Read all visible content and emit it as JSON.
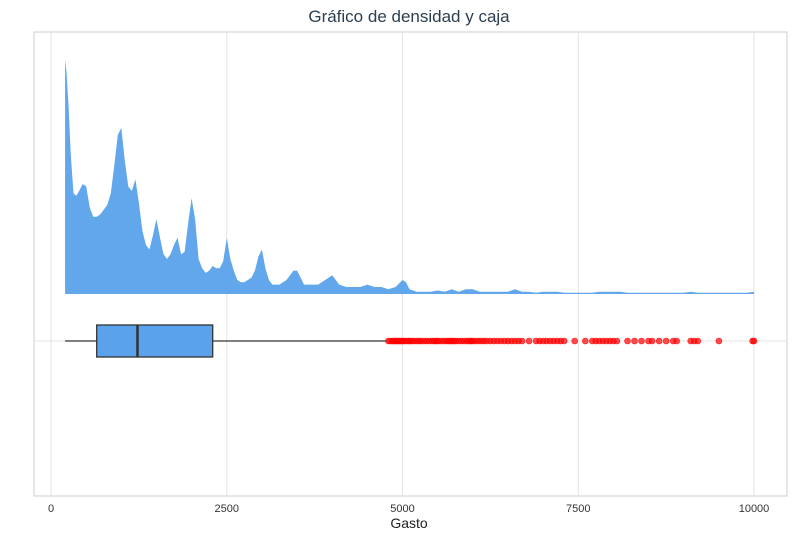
{
  "chart_data": {
    "type": "density+boxplot",
    "title": "Gráfico de densidad y caja",
    "xlabel": "Gasto",
    "ylabel": "",
    "xlim": [
      -250,
      10300
    ],
    "x_ticks": [
      0,
      2500,
      5000,
      7500,
      10000
    ],
    "x_tick_labels": [
      "0",
      "2500",
      "5000",
      "7500",
      "10000"
    ],
    "grid": true,
    "colors": {
      "fill": "#5aa2eb",
      "outlier": "#ff0000",
      "box_edge": "#333333",
      "grid": "#e3e3e3"
    },
    "density": {
      "x": [
        200,
        220,
        250,
        280,
        320,
        360,
        400,
        450,
        500,
        550,
        600,
        650,
        700,
        750,
        800,
        850,
        900,
        950,
        1000,
        1050,
        1100,
        1150,
        1200,
        1250,
        1300,
        1350,
        1400,
        1450,
        1500,
        1550,
        1600,
        1650,
        1700,
        1750,
        1800,
        1850,
        1900,
        1950,
        2000,
        2050,
        2100,
        2150,
        2200,
        2250,
        2300,
        2350,
        2400,
        2450,
        2500,
        2550,
        2600,
        2650,
        2700,
        2750,
        2800,
        2850,
        2900,
        2950,
        3000,
        3050,
        3100,
        3150,
        3200,
        3250,
        3300,
        3350,
        3400,
        3450,
        3500,
        3550,
        3600,
        3700,
        3800,
        3900,
        4000,
        4100,
        4200,
        4300,
        4400,
        4500,
        4600,
        4700,
        4800,
        4900,
        5000,
        5050,
        5100,
        5200,
        5300,
        5400,
        5500,
        5600,
        5700,
        5800,
        5900,
        6000,
        6100,
        6200,
        6300,
        6400,
        6500,
        6600,
        6700,
        6800,
        6900,
        7000,
        7100,
        7200,
        7300,
        7400,
        7500,
        7600,
        7700,
        7800,
        7900,
        8000,
        8100,
        8200,
        8300,
        8400,
        8500,
        8600,
        8700,
        8800,
        8900,
        9000,
        9100,
        9200,
        9300,
        9400,
        9500,
        9600,
        9700,
        9800,
        9900,
        10000
      ],
      "y": [
        1.0,
        0.95,
        0.8,
        0.6,
        0.43,
        0.42,
        0.44,
        0.47,
        0.46,
        0.37,
        0.33,
        0.33,
        0.34,
        0.36,
        0.38,
        0.43,
        0.55,
        0.68,
        0.71,
        0.57,
        0.46,
        0.44,
        0.49,
        0.39,
        0.27,
        0.21,
        0.19,
        0.25,
        0.32,
        0.24,
        0.17,
        0.15,
        0.17,
        0.21,
        0.24,
        0.17,
        0.18,
        0.3,
        0.41,
        0.32,
        0.15,
        0.11,
        0.09,
        0.1,
        0.12,
        0.11,
        0.11,
        0.14,
        0.24,
        0.15,
        0.1,
        0.06,
        0.05,
        0.05,
        0.06,
        0.07,
        0.1,
        0.16,
        0.19,
        0.11,
        0.06,
        0.04,
        0.04,
        0.04,
        0.05,
        0.06,
        0.08,
        0.1,
        0.1,
        0.07,
        0.04,
        0.04,
        0.04,
        0.06,
        0.08,
        0.04,
        0.03,
        0.03,
        0.03,
        0.04,
        0.03,
        0.03,
        0.02,
        0.03,
        0.06,
        0.05,
        0.02,
        0.01,
        0.01,
        0.01,
        0.015,
        0.01,
        0.02,
        0.01,
        0.02,
        0.02,
        0.01,
        0.01,
        0.01,
        0.01,
        0.01,
        0.02,
        0.01,
        0.01,
        0.005,
        0.01,
        0.01,
        0.01,
        0.005,
        0.005,
        0.005,
        0.005,
        0.005,
        0.01,
        0.01,
        0.01,
        0.01,
        0.005,
        0.005,
        0.005,
        0.005,
        0.005,
        0.005,
        0.005,
        0.005,
        0.005,
        0.01,
        0.005,
        0.005,
        0.005,
        0.005,
        0.005,
        0.005,
        0.005,
        0.005,
        0.01
      ]
    },
    "boxplot": {
      "whisker_low": 200,
      "q1": 650,
      "median": 1230,
      "q3": 2300,
      "whisker_high": 4780,
      "outliers": [
        4800,
        4830,
        4860,
        4880,
        4900,
        4920,
        4940,
        4960,
        4980,
        5000,
        5020,
        5050,
        5080,
        5100,
        5130,
        5160,
        5200,
        5230,
        5260,
        5300,
        5340,
        5380,
        5420,
        5450,
        5480,
        5500,
        5540,
        5580,
        5620,
        5650,
        5680,
        5700,
        5730,
        5760,
        5800,
        5840,
        5880,
        5920,
        5950,
        5980,
        6000,
        6040,
        6080,
        6120,
        6160,
        6200,
        6250,
        6300,
        6350,
        6400,
        6450,
        6500,
        6550,
        6600,
        6650,
        6700,
        6800,
        6900,
        6950,
        7000,
        7050,
        7100,
        7150,
        7200,
        7250,
        7300,
        7450,
        7600,
        7700,
        7750,
        7800,
        7850,
        7900,
        7950,
        8000,
        8050,
        8200,
        8300,
        8400,
        8500,
        8550,
        8650,
        8750,
        8850,
        8900,
        9100,
        9150,
        9200,
        9500,
        9980,
        10000
      ]
    }
  }
}
